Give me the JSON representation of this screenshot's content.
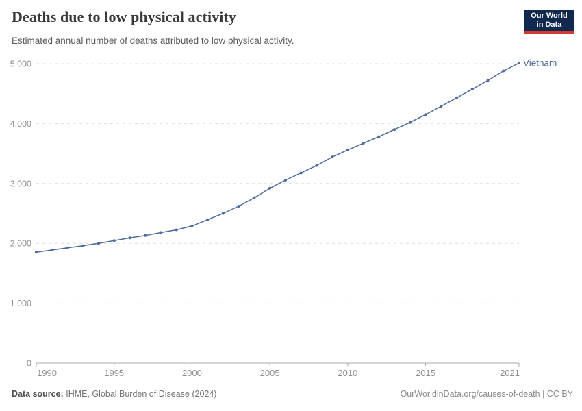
{
  "header": {
    "title": "Deaths due to low physical activity",
    "subtitle": "Estimated annual number of deaths attributed to low physical activity."
  },
  "logo": {
    "line1": "Our World",
    "line2": "in Data",
    "bg_color": "#12294F",
    "bar_color": "#D43A2F"
  },
  "chart_data": {
    "type": "line",
    "title": "Deaths due to low physical activity",
    "xlabel": "",
    "ylabel": "",
    "x": [
      1990,
      1991,
      1992,
      1993,
      1994,
      1995,
      1996,
      1997,
      1998,
      1999,
      2000,
      2001,
      2002,
      2003,
      2004,
      2005,
      2006,
      2007,
      2008,
      2009,
      2010,
      2011,
      2012,
      2013,
      2014,
      2015,
      2016,
      2017,
      2018,
      2019,
      2020,
      2021
    ],
    "series": [
      {
        "name": "Vietnam",
        "color": "#4C6A9C",
        "values": [
          1850,
          1888,
          1925,
          1960,
          2000,
          2045,
          2090,
          2130,
          2180,
          2225,
          2290,
          2395,
          2500,
          2620,
          2760,
          2920,
          3055,
          3175,
          3300,
          3440,
          3560,
          3670,
          3780,
          3900,
          4020,
          4150,
          4290,
          4430,
          4575,
          4720,
          4880,
          5010
        ]
      }
    ],
    "xlim": [
      1990,
      2021
    ],
    "ylim": [
      0,
      5000
    ],
    "xticks": [
      1990,
      1995,
      2000,
      2005,
      2010,
      2015,
      2021
    ],
    "yticks": [
      0,
      1000,
      2000,
      3000,
      4000,
      5000
    ],
    "grid": "horizontal-dashed",
    "legend": "line-end-label"
  },
  "colors": {
    "line": "#4C6A9C",
    "grid": "#dedede",
    "axis": "#a8a8a8",
    "tick_text": "#8f8f8f",
    "end_label": "#4C6A9C"
  },
  "footer": {
    "source_label": "Data source:",
    "source_value": "IHME, Global Burden of Disease (2024)",
    "license": "OurWorldinData.org/causes-of-death | CC BY"
  }
}
